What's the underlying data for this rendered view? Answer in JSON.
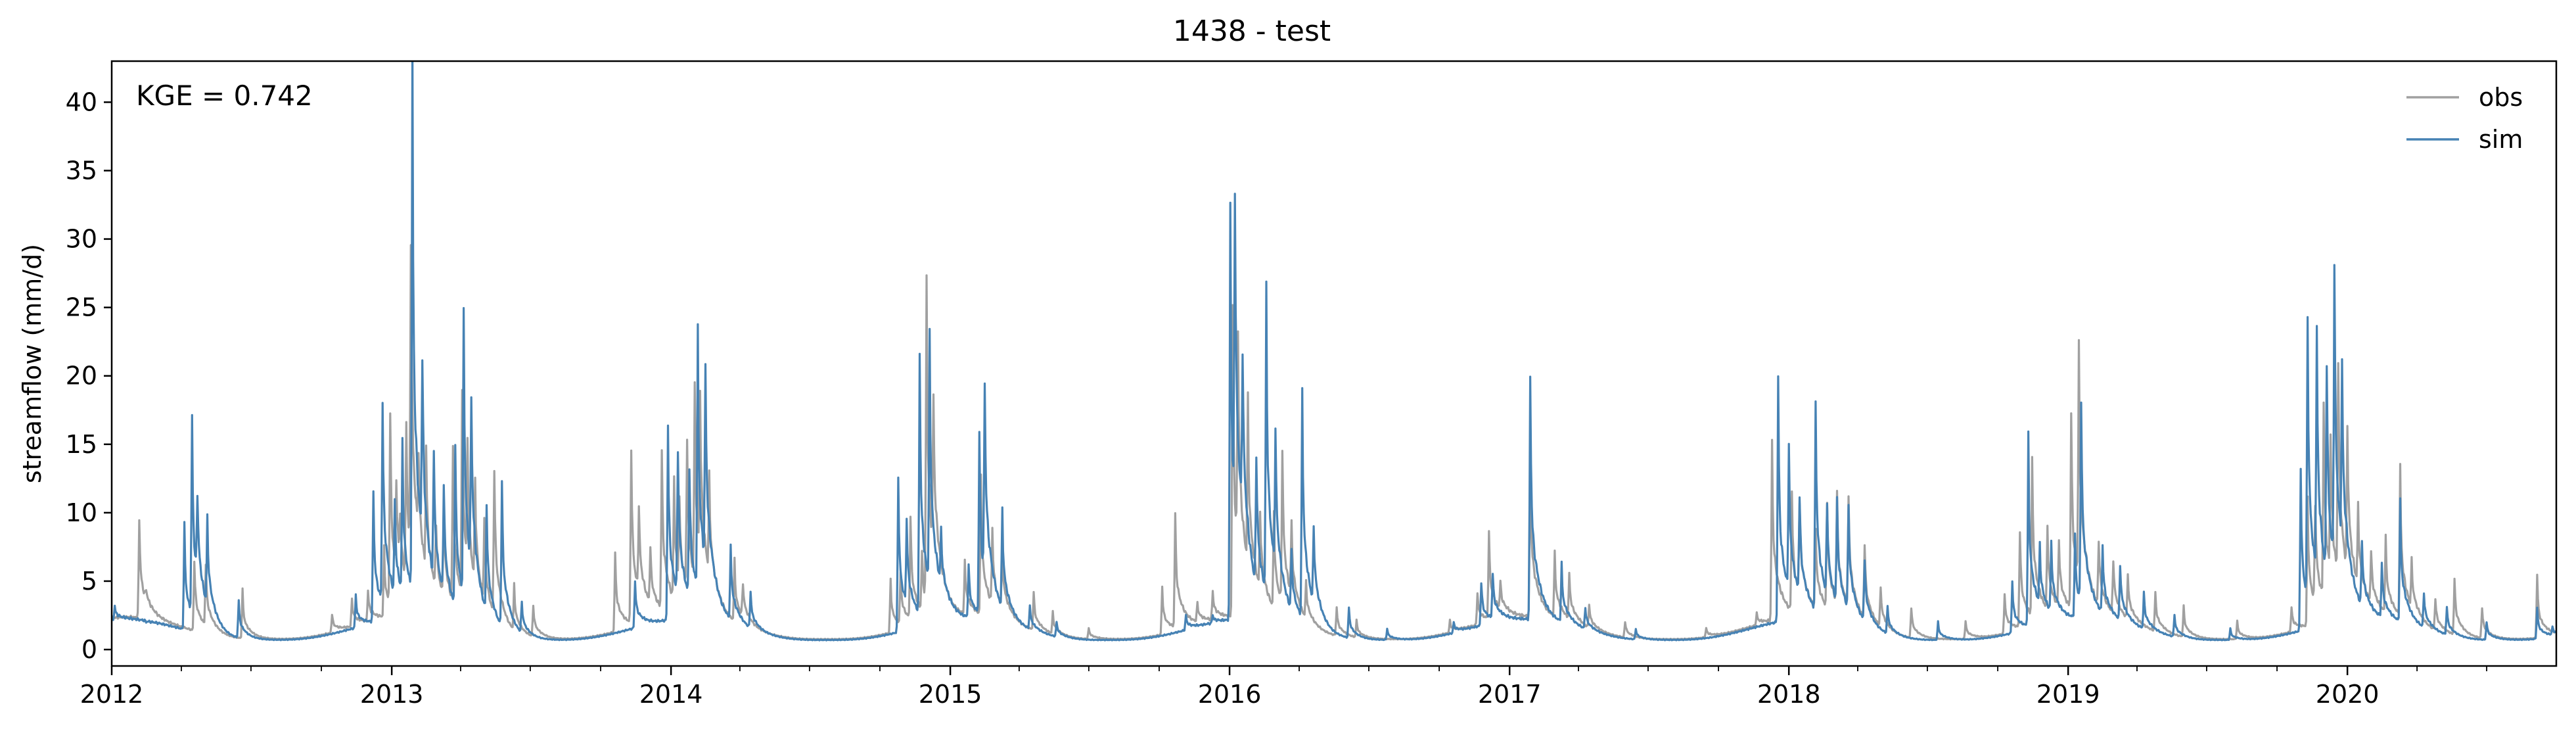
{
  "chart_data": {
    "type": "line",
    "title": "1438 - test",
    "xlabel": "",
    "ylabel": "streamflow (mm/d)",
    "annotation": "KGE = 0.742",
    "grid": false,
    "legend_position": "top-right",
    "x_range": [
      "2012-01-01",
      "2020-09-30"
    ],
    "ylim": [
      -1.2,
      43
    ],
    "x_ticks": [
      "2012",
      "2013",
      "2014",
      "2015",
      "2016",
      "2017",
      "2018",
      "2019",
      "2020"
    ],
    "y_ticks": [
      0,
      5,
      10,
      15,
      20,
      25,
      30,
      35,
      40
    ],
    "baseline": {
      "low": 0.7,
      "wet": 2.2
    },
    "series": [
      {
        "name": "obs",
        "color": "#a0a0a0",
        "baseline_scale": 1.08,
        "peaks": [
          [
            "2012-02-06",
            9.6
          ],
          [
            "2012-02-15",
            2.8
          ],
          [
            "2012-04-18",
            6.5
          ],
          [
            "2012-05-03",
            5.5
          ],
          [
            "2012-06-20",
            4.2
          ],
          [
            "2012-10-15",
            2.5
          ],
          [
            "2012-11-10",
            3.5
          ],
          [
            "2012-12-01",
            4.0
          ],
          [
            "2012-12-22",
            7.0
          ],
          [
            "2012-12-30",
            16.0
          ],
          [
            "2013-01-07",
            9.0
          ],
          [
            "2013-01-12",
            5.5
          ],
          [
            "2013-01-20",
            14.0
          ],
          [
            "2013-01-26",
            26.0
          ],
          [
            "2013-02-05",
            8.0
          ],
          [
            "2013-02-15",
            11.0
          ],
          [
            "2013-02-28",
            7.0
          ],
          [
            "2013-03-10",
            9.0
          ],
          [
            "2013-03-22",
            13.0
          ],
          [
            "2013-04-03",
            17.0
          ],
          [
            "2013-04-10",
            10.0
          ],
          [
            "2013-04-20",
            9.0
          ],
          [
            "2013-05-02",
            7.0
          ],
          [
            "2013-05-15",
            12.0
          ],
          [
            "2013-06-10",
            4.0
          ],
          [
            "2013-07-05",
            3.0
          ],
          [
            "2013-10-20",
            7.0
          ],
          [
            "2013-11-10",
            14.7
          ],
          [
            "2013-11-20",
            8.0
          ],
          [
            "2013-12-05",
            6.0
          ],
          [
            "2013-12-20",
            13.5
          ],
          [
            "2014-01-05",
            11.0
          ],
          [
            "2014-01-12",
            8.0
          ],
          [
            "2014-01-22",
            13.0
          ],
          [
            "2014-02-01",
            16.0
          ],
          [
            "2014-02-08",
            14.0
          ],
          [
            "2014-02-20",
            9.0
          ],
          [
            "2014-03-25",
            6.0
          ],
          [
            "2014-04-05",
            4.0
          ],
          [
            "2014-10-15",
            5.0
          ],
          [
            "2014-10-28",
            5.0
          ],
          [
            "2014-11-10",
            9.0
          ],
          [
            "2014-11-25",
            6.0
          ],
          [
            "2014-12-01",
            25.7
          ],
          [
            "2014-12-10",
            13.0
          ],
          [
            "2015-01-20",
            6.0
          ],
          [
            "2015-02-10",
            12.0
          ],
          [
            "2015-02-25",
            7.5
          ],
          [
            "2015-03-10",
            6.0
          ],
          [
            "2015-04-20",
            4.0
          ],
          [
            "2015-05-15",
            2.5
          ],
          [
            "2015-07-01",
            1.5
          ],
          [
            "2015-10-05",
            4.5
          ],
          [
            "2015-10-22",
            9.4
          ],
          [
            "2015-11-20",
            3.0
          ],
          [
            "2015-12-10",
            4.0
          ],
          [
            "2016-01-05",
            25.0
          ],
          [
            "2016-01-12",
            18.0
          ],
          [
            "2016-01-25",
            14.0
          ],
          [
            "2016-02-10",
            8.0
          ],
          [
            "2016-02-28",
            9.0
          ],
          [
            "2016-03-10",
            13.0
          ],
          [
            "2016-03-22",
            7.0
          ],
          [
            "2016-04-10",
            4.0
          ],
          [
            "2016-05-20",
            3.0
          ],
          [
            "2016-06-15",
            2.0
          ],
          [
            "2016-10-15",
            2.0
          ],
          [
            "2016-11-20",
            4.0
          ],
          [
            "2016-12-05",
            8.2
          ],
          [
            "2016-12-20",
            4.0
          ],
          [
            "2017-01-28",
            14.0
          ],
          [
            "2017-03-01",
            6.5
          ],
          [
            "2017-03-20",
            5.0
          ],
          [
            "2017-04-15",
            3.0
          ],
          [
            "2017-06-01",
            2.0
          ],
          [
            "2017-09-15",
            1.5
          ],
          [
            "2017-11-20",
            2.5
          ],
          [
            "2017-12-10",
            15.0
          ],
          [
            "2018-01-05",
            11.0
          ],
          [
            "2018-01-15",
            9.0
          ],
          [
            "2018-02-05",
            8.0
          ],
          [
            "2018-02-20",
            10.0
          ],
          [
            "2018-03-05",
            10.0
          ],
          [
            "2018-03-20",
            10.0
          ],
          [
            "2018-04-10",
            7.0
          ],
          [
            "2018-05-01",
            4.0
          ],
          [
            "2018-06-10",
            3.0
          ],
          [
            "2018-08-20",
            2.0
          ],
          [
            "2018-10-10",
            4.0
          ],
          [
            "2018-10-30",
            8.5
          ],
          [
            "2018-11-15",
            13.0
          ],
          [
            "2018-12-05",
            8.0
          ],
          [
            "2018-12-20",
            7.0
          ],
          [
            "2019-01-05",
            16.5
          ],
          [
            "2019-01-15",
            19.0
          ],
          [
            "2019-02-10",
            7.0
          ],
          [
            "2019-03-01",
            6.0
          ],
          [
            "2019-03-20",
            5.0
          ],
          [
            "2019-04-25",
            4.0
          ],
          [
            "2019-06-01",
            3.0
          ],
          [
            "2019-08-10",
            2.0
          ],
          [
            "2019-10-20",
            3.0
          ],
          [
            "2019-11-10",
            11.0
          ],
          [
            "2019-11-20",
            9.0
          ],
          [
            "2019-12-01",
            16.0
          ],
          [
            "2019-12-10",
            12.0
          ],
          [
            "2019-12-20",
            18.0
          ],
          [
            "2020-01-01",
            13.0
          ],
          [
            "2020-01-15",
            8.0
          ],
          [
            "2020-02-01",
            6.0
          ],
          [
            "2020-02-20",
            7.5
          ],
          [
            "2020-03-10",
            12.5
          ],
          [
            "2020-03-25",
            5.0
          ],
          [
            "2020-04-25",
            3.5
          ],
          [
            "2020-05-20",
            5.0
          ],
          [
            "2020-06-25",
            3.0
          ],
          [
            "2020-09-05",
            5.3
          ]
        ]
      },
      {
        "name": "sim",
        "color": "#4682b4",
        "baseline_scale": 1.0,
        "peaks": [
          [
            "2012-01-05",
            3.2
          ],
          [
            "2012-02-15",
            2.0
          ],
          [
            "2012-04-05",
            9.0
          ],
          [
            "2012-04-15",
            15.6
          ],
          [
            "2012-04-22",
            7.5
          ],
          [
            "2012-05-05",
            7.5
          ],
          [
            "2012-06-15",
            3.5
          ],
          [
            "2012-11-15",
            4.0
          ],
          [
            "2012-12-08",
            11.5
          ],
          [
            "2012-12-20",
            17.0
          ],
          [
            "2013-01-05",
            9.0
          ],
          [
            "2013-01-15",
            13.0
          ],
          [
            "2013-01-28",
            41.0
          ],
          [
            "2013-02-10",
            15.8
          ],
          [
            "2013-02-25",
            11.5
          ],
          [
            "2013-03-10",
            10.0
          ],
          [
            "2013-03-25",
            13.5
          ],
          [
            "2013-04-05",
            22.2
          ],
          [
            "2013-04-15",
            14.0
          ],
          [
            "2013-05-05",
            9.0
          ],
          [
            "2013-05-25",
            11.5
          ],
          [
            "2013-06-20",
            3.0
          ],
          [
            "2013-11-15",
            5.0
          ],
          [
            "2013-12-28",
            16.6
          ],
          [
            "2014-01-10",
            13.0
          ],
          [
            "2014-01-25",
            12.0
          ],
          [
            "2014-02-05",
            20.7
          ],
          [
            "2014-02-15",
            16.5
          ],
          [
            "2014-03-20",
            7.0
          ],
          [
            "2014-04-15",
            4.0
          ],
          [
            "2014-10-25",
            13.0
          ],
          [
            "2014-11-05",
            7.5
          ],
          [
            "2014-11-22",
            21.0
          ],
          [
            "2014-12-05",
            19.5
          ],
          [
            "2014-12-20",
            6.0
          ],
          [
            "2015-01-25",
            6.0
          ],
          [
            "2015-02-08",
            15.5
          ],
          [
            "2015-02-15",
            16.3
          ],
          [
            "2015-03-10",
            9.0
          ],
          [
            "2015-04-15",
            3.0
          ],
          [
            "2015-05-20",
            2.0
          ],
          [
            "2015-11-05",
            2.5
          ],
          [
            "2015-12-10",
            2.5
          ],
          [
            "2016-01-02",
            33.1
          ],
          [
            "2016-01-08",
            26.5
          ],
          [
            "2016-01-18",
            14.5
          ],
          [
            "2016-02-05",
            12.0
          ],
          [
            "2016-02-18",
            24.0
          ],
          [
            "2016-03-01",
            12.0
          ],
          [
            "2016-03-22",
            6.0
          ],
          [
            "2016-04-05",
            18.2
          ],
          [
            "2016-04-20",
            7.0
          ],
          [
            "2016-06-05",
            3.0
          ],
          [
            "2016-07-25",
            1.5
          ],
          [
            "2016-10-20",
            2.0
          ],
          [
            "2016-11-25",
            5.0
          ],
          [
            "2016-12-10",
            5.2
          ],
          [
            "2017-01-28",
            20.2
          ],
          [
            "2017-03-10",
            6.0
          ],
          [
            "2017-04-10",
            3.0
          ],
          [
            "2017-06-15",
            1.5
          ],
          [
            "2017-12-18",
            20.0
          ],
          [
            "2018-01-01",
            12.5
          ],
          [
            "2018-01-15",
            9.5
          ],
          [
            "2018-02-05",
            17.5
          ],
          [
            "2018-02-20",
            9.0
          ],
          [
            "2018-03-05",
            9.5
          ],
          [
            "2018-03-20",
            9.5
          ],
          [
            "2018-04-10",
            6.0
          ],
          [
            "2018-05-10",
            3.0
          ],
          [
            "2018-07-15",
            2.0
          ],
          [
            "2018-10-20",
            5.0
          ],
          [
            "2018-11-10",
            15.0
          ],
          [
            "2018-11-25",
            6.0
          ],
          [
            "2018-12-10",
            7.0
          ],
          [
            "2019-01-10",
            8.0
          ],
          [
            "2019-01-18",
            17.0
          ],
          [
            "2019-02-15",
            7.0
          ],
          [
            "2019-03-10",
            6.0
          ],
          [
            "2019-04-10",
            4.0
          ],
          [
            "2019-05-20",
            2.5
          ],
          [
            "2019-08-01",
            1.5
          ],
          [
            "2019-11-01",
            13.5
          ],
          [
            "2019-11-10",
            22.0
          ],
          [
            "2019-11-22",
            19.5
          ],
          [
            "2019-12-05",
            18.0
          ],
          [
            "2019-12-15",
            23.8
          ],
          [
            "2019-12-25",
            15.0
          ],
          [
            "2020-01-20",
            7.0
          ],
          [
            "2020-02-15",
            6.0
          ],
          [
            "2020-03-10",
            10.5
          ],
          [
            "2020-04-10",
            4.0
          ],
          [
            "2020-05-10",
            3.0
          ],
          [
            "2020-07-01",
            2.0
          ],
          [
            "2020-09-05",
            3.0
          ],
          [
            "2020-09-25",
            1.5
          ]
        ]
      }
    ]
  }
}
